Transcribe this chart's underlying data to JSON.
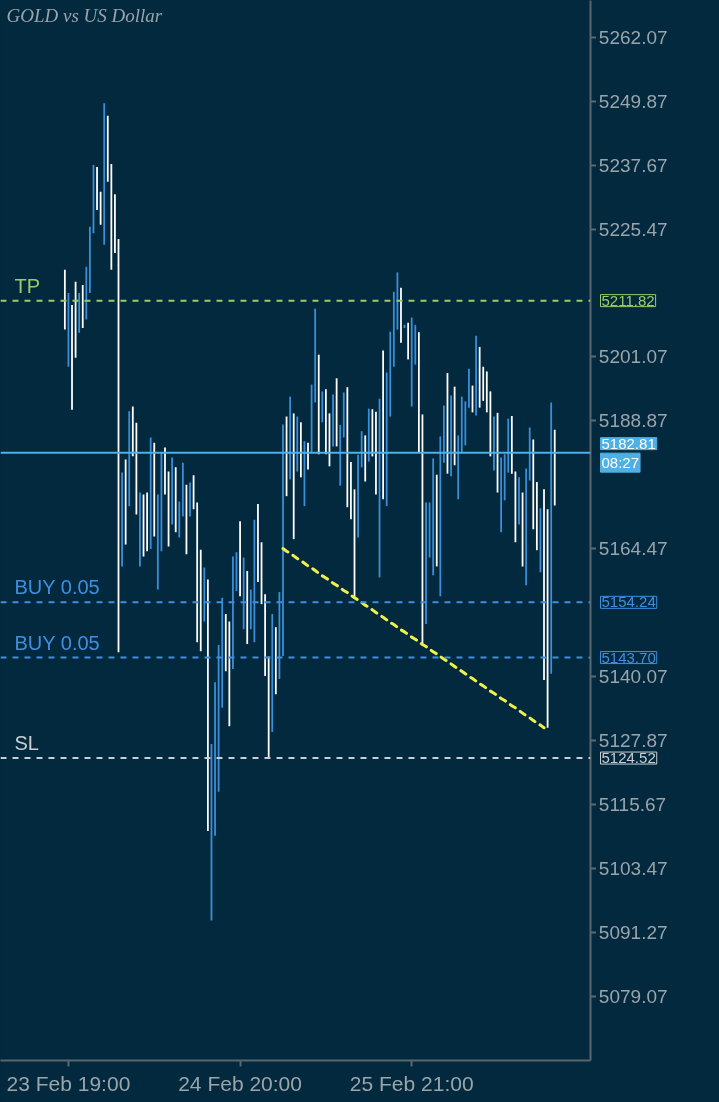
{
  "chart_data": {
    "type": "bar",
    "title": "GOLD vs US Dollar",
    "categories": [
      null,
      "23 Feb 19:00",
      null,
      null,
      null,
      null,
      null,
      null,
      null,
      null,
      null,
      null,
      null,
      null,
      null,
      null,
      null,
      null,
      null,
      null,
      null,
      null,
      null,
      null,
      null,
      null,
      null,
      null,
      null,
      null,
      null,
      null,
      null,
      null,
      null,
      null,
      null,
      null,
      null,
      null,
      null,
      null,
      null,
      null,
      null,
      null,
      null,
      null,
      null,
      "24 Feb 20:00",
      null,
      null,
      null,
      null,
      null,
      null,
      null,
      null,
      null,
      null,
      null,
      null,
      null,
      null,
      null,
      null,
      null,
      null,
      null,
      null,
      null,
      null,
      null,
      null,
      null,
      null,
      null,
      null,
      null,
      null,
      null,
      null,
      null,
      null,
      null,
      null,
      null,
      null,
      null,
      null,
      null,
      null,
      null,
      null,
      null,
      null,
      null,
      "25 Feb 21:00",
      null,
      null,
      null,
      null,
      null,
      null,
      null,
      null,
      null,
      null,
      null,
      null,
      null,
      null,
      null,
      null,
      null,
      null,
      null,
      null,
      null,
      null,
      null,
      null,
      null,
      null,
      null,
      null,
      null,
      null,
      null,
      null,
      null,
      null,
      null,
      null,
      null,
      null,
      null,
      null
    ],
    "ylim": [
      5066.8,
      5269.1
    ],
    "yticks": [
      5262.07,
      5249.87,
      5237.67,
      5225.47,
      5201.07,
      5188.87,
      5164.47,
      5140.07,
      5127.87,
      5115.67,
      5103.47,
      5091.27,
      5079.07
    ],
    "grid": false,
    "series": [
      {
        "base": [
          5206.3,
          5199.2,
          5191.0,
          5200.9,
          5205.7,
          5206.6,
          5208.2,
          5213.3,
          5224.7,
          5229.1,
          5226.3,
          5222.5,
          5234.5,
          5217.7,
          5220.9,
          5144.7,
          5161.1,
          5165.3,
          5172.6,
          5182.1,
          5171.0,
          5161.1,
          5163.0,
          5164.0,
          5164.4,
          5166.8,
          5156.7,
          5164.0,
          5174.8,
          5164.9,
          5169.1,
          5167.6,
          5166.6,
          5170.6,
          5163.4,
          5170.6,
          5172.0,
          5146.6,
          5144.9,
          5150.6,
          5110.6,
          5093.5,
          5109.7,
          5118.1,
          5134.1,
          5141.1,
          5130.6,
          5141.5,
          5156.4,
          5155.4,
          5149.1,
          5146.3,
          5149.1,
          5146.6,
          5158.1,
          5153.9,
          5140.2,
          5124.7,
          5129.5,
          5136.7,
          5139.6,
          5144.0,
          5174.5,
          5177.7,
          5166.3,
          5179.2,
          5178.1,
          5172.6,
          5179.6,
          5182.8,
          5192.4,
          5182.5,
          5188.6,
          5182.5,
          5180.2,
          5184.0,
          5184.0,
          5176.5,
          5185.7,
          5172.4,
          5170.1,
          5155.2,
          5166.6,
          5180.0,
          5177.3,
          5181.1,
          5182.1,
          5174.8,
          5159.0,
          5173.9,
          5172.6,
          5189.7,
          5199.2,
          5206.3,
          5203.8,
          5206.6,
          5200.6,
          5191.6,
          5199.6,
          5182.8,
          5146.3,
          5150.1,
          5162.8,
          5159.4,
          5161.1,
          5155.4,
          5180.9,
          5178.8,
          5178.3,
          5180.4,
          5173.9,
          5182.8,
          5184.2,
          5191.4,
          5190.5,
          5189.9,
          5191.4,
          5192.7,
          5190.5,
          5182.1,
          5179.4,
          5175.2,
          5167.6,
          5173.7,
          5179.0,
          5178.8,
          5165.7,
          5169.1,
          5161.1,
          5157.5,
          5177.5,
          5168.2,
          5164.2,
          5160.0,
          5139.4,
          5130.3,
          5140.6,
          5172.7
        ],
        "values": [
          11.4,
          14.1,
          20.0,
          14.5,
          7.6,
          8.2,
          10.1,
          12.6,
          13.0,
          8.2,
          6.3,
          27.0,
          12.6,
          20.2,
          11.2,
          78.9,
          17.9,
          16.2,
          18.1,
          9.5,
          17.5,
          14.1,
          11.8,
          11.2,
          21.3,
          17.9,
          18.1,
          18.9,
          9.0,
          14.3,
          12.8,
          12.4,
          6.9,
          10.3,
          13.3,
          6.5,
          6.5,
          26.7,
          19.4,
          10.3,
          48.0,
          33.7,
          29.3,
          28.0,
          21.0,
          10.9,
          20.0,
          21.5,
          7.4,
          14.3,
          13.7,
          13.9,
          7.6,
          23.4,
          14.9,
          11.8,
          15.6,
          19.2,
          22.5,
          12.8,
          16.6,
          44.2,
          15.2,
          15.8,
          24.0,
          10.5,
          10.5,
          12.4,
          5.1,
          13.0,
          17.9,
          19.0,
          5.9,
          12.4,
          10.1,
          9.9,
          13.0,
          11.6,
          8.6,
          22.9,
          10.9,
          20.6,
          15.8,
          6.9,
          8.8,
          10.1,
          9.0,
          15.8,
          34.1,
          28.4,
          25.5,
          16.2,
          14.3,
          10.9,
          10.5,
          0.6,
          7.0,
          17.0,
          7.6,
          23.0,
          43.8,
          23.2,
          10.5,
          22.3,
          17.5,
          30.5,
          10.9,
          19.2,
          15.4,
          15.0,
          12.2,
          10.7,
          8.4,
          7.4,
          5.1,
          15.2,
          11.6,
          6.5,
          7.8,
          12.4,
          10.3,
          15.2,
          14.3,
          8.8,
          10.3,
          11.0,
          13.5,
          9.0,
          14.1,
          22.3,
          10.1,
          17.1,
          13.0,
          12.2,
          36.4,
          41.7,
          51.8,
          14.5
        ],
        "colors": [
          "#ffffff",
          "#3b8fd8",
          "#ffffff",
          "#ffffff",
          "#3b8fd8",
          "#ffffff",
          "#3b8fd8",
          "#3b8fd8",
          "#3b8fd8",
          "#ffffff",
          "#ffffff",
          "#3b8fd8",
          "#ffffff",
          "#ffffff",
          "#ffffff",
          "#ffffff",
          "#3b8fd8",
          "#ffffff",
          "#3b8fd8",
          "#ffffff",
          "#ffffff",
          "#3b8fd8",
          "#ffffff",
          "#ffffff",
          "#3b8fd8",
          "#ffffff",
          "#3b8fd8",
          "#3b8fd8",
          "#ffffff",
          "#ffffff",
          "#3b8fd8",
          "#ffffff",
          "#3b8fd8",
          "#3b8fd8",
          "#ffffff",
          "#3b8fd8",
          "#ffffff",
          "#ffffff",
          "#ffffff",
          "#3b8fd8",
          "#ffffff",
          "#3b8fd8",
          "#3b8fd8",
          "#3b8fd8",
          "#3b8fd8",
          "#ffffff",
          "#ffffff",
          "#3b8fd8",
          "#3b8fd8",
          "#ffffff",
          "#3b8fd8",
          "#ffffff",
          "#3b8fd8",
          "#3b8fd8",
          "#ffffff",
          "#ffffff",
          "#ffffff",
          "#ffffff",
          "#3b8fd8",
          "#ffffff",
          "#3b8fd8",
          "#3b8fd8",
          "#ffffff",
          "#3b8fd8",
          "#ffffff",
          "#3b8fd8",
          "#ffffff",
          "#3b8fd8",
          "#ffffff",
          "#3b8fd8",
          "#3b8fd8",
          "#ffffff",
          "#3b8fd8",
          "#ffffff",
          "#ffffff",
          "#3b8fd8",
          "#ffffff",
          "#3b8fd8",
          "#3b8fd8",
          "#ffffff",
          "#ffffff",
          "#ffffff",
          "#3b8fd8",
          "#3b8fd8",
          "#ffffff",
          "#3b8fd8",
          "#ffffff",
          "#ffffff",
          "#3b8fd8",
          "#ffffff",
          "#3b8fd8",
          "#3b8fd8",
          "#3b8fd8",
          "#3b8fd8",
          "#ffffff",
          "#3b8fd8",
          "#ffffff",
          "#3b8fd8",
          "#3b8fd8",
          "#ffffff",
          "#ffffff",
          "#3b8fd8",
          "#3b8fd8",
          "#3b8fd8",
          "#ffffff",
          "#3b8fd8",
          "#3b8fd8",
          "#ffffff",
          "#3b8fd8",
          "#ffffff",
          "#3b8fd8",
          "#3b8fd8",
          "#3b8fd8",
          "#3b8fd8",
          "#ffffff",
          "#3b8fd8",
          "#ffffff",
          "#ffffff",
          "#ffffff",
          "#ffffff",
          "#3b8fd8",
          "#ffffff",
          "#3b8fd8",
          "#3b8fd8",
          "#3b8fd8",
          "#ffffff",
          "#ffffff",
          "#3b8fd8",
          "#ffffff",
          "#3b8fd8",
          "#3b8fd8",
          "#ffffff",
          "#ffffff",
          "#3b8fd8",
          "#ffffff",
          "#ffffff",
          "#3b8fd8",
          "#ffffff"
        ]
      },
      {
        "type": "line",
        "color": "#f0f04a",
        "line_style": "dashed",
        "values": [
          null,
          null,
          null,
          null,
          null,
          null,
          null,
          null,
          null,
          null,
          null,
          null,
          null,
          null,
          null,
          null,
          null,
          null,
          null,
          null,
          null,
          null,
          null,
          null,
          null,
          null,
          null,
          null,
          null,
          null,
          null,
          null,
          null,
          null,
          null,
          null,
          null,
          null,
          null,
          null,
          null,
          null,
          null,
          null,
          null,
          null,
          null,
          null,
          null,
          null,
          null,
          null,
          null,
          null,
          null,
          null,
          null,
          null,
          null,
          null,
          null,
          5164.5,
          5164.0,
          5163.6,
          5163.1,
          5162.6,
          5162.2,
          5161.7,
          5161.2,
          5160.8,
          5160.3,
          5159.8,
          5159.3,
          5158.9,
          5158.4,
          5157.9,
          5157.5,
          5157.0,
          5156.5,
          5156.1,
          5155.6,
          5155.1,
          5154.7,
          5154.2,
          5153.7,
          5153.3,
          5152.8,
          5152.3,
          5151.8,
          5151.4,
          5150.9,
          5150.4,
          5150.0,
          5149.5,
          5149.0,
          5148.6,
          5148.1,
          5147.6,
          5147.2,
          5146.7,
          5146.2,
          5145.8,
          5145.3,
          5144.8,
          5144.4,
          5143.9,
          5143.4,
          5143.0,
          5142.5,
          5142.0,
          5141.5,
          5141.1,
          5140.6,
          5140.1,
          5139.7,
          5139.2,
          5138.7,
          5138.3,
          5137.8,
          5137.3,
          5136.9,
          5136.4,
          5135.9,
          5135.5,
          5135.0,
          5134.5,
          5134.1,
          5133.6,
          5133.1,
          5132.6,
          5132.2,
          5131.7,
          5131.2,
          5130.8,
          5130.3,
          null,
          null,
          null
        ]
      }
    ],
    "ref_lines": [
      {
        "axis": "y",
        "value": 5211.82,
        "label": "TP",
        "color": "#9ccc65",
        "line_style": "dashed"
      },
      {
        "axis": "y",
        "value": 5182.81,
        "label": null,
        "color": "#4fb0e6",
        "line_style": "solid"
      },
      {
        "axis": "y",
        "value": 5154.24,
        "label": "BUY 0.05",
        "color": "#3f8fe0",
        "line_style": "dashed"
      },
      {
        "axis": "y",
        "value": 5143.7,
        "label": "BUY 0.05",
        "color": "#3f8fe0",
        "line_style": "dashed"
      },
      {
        "axis": "y",
        "value": 5124.52,
        "label": "SL",
        "color": "#c9ced2",
        "line_style": "dashed"
      }
    ],
    "annotations": [
      "5211.82",
      "5182.81",
      "08:27",
      "5154.24",
      "5143.70",
      "5124.52"
    ]
  }
}
